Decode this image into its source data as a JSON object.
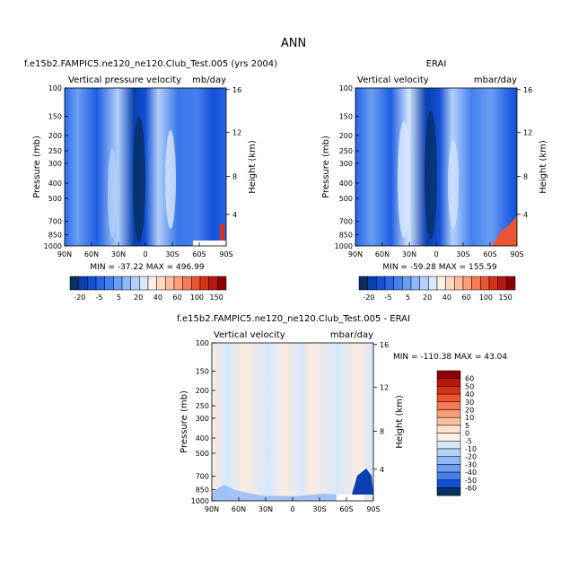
{
  "title": "ANN",
  "colors": {
    "diverging": [
      "#053061",
      "#0a3fb0",
      "#1450d6",
      "#2a66e6",
      "#4580ee",
      "#6a9ef2",
      "#8fb8f6",
      "#b3d0fa",
      "#d6e7fc",
      "#fff0e6",
      "#ffd7c2",
      "#ffbd9e",
      "#ff9d7a",
      "#f77a55",
      "#ea5534",
      "#d63219",
      "#b8170b",
      "#8b0000"
    ]
  },
  "chart_data": [
    {
      "id": "model",
      "type": "heatmap",
      "title": "f.e15b2.FAMPIC5.ne120_ne120.Club_Test.005 (yrs 2004)",
      "left_title": "Vertical pressure velocity",
      "units": "mb/day",
      "ylabel": "Pressure (mb)",
      "ylabel_right": "Height (km)",
      "xticks": [
        "90N",
        "60N",
        "30N",
        "0",
        "30S",
        "60S",
        "90S"
      ],
      "yticks": [
        "100",
        "150",
        "200",
        "250",
        "300",
        "400",
        "500",
        "700",
        "850",
        "1000"
      ],
      "yticks_right": [
        "16",
        "12",
        "8",
        "4"
      ],
      "stats": "MIN = -37.22   MAX = 496.99",
      "colorbar_labels": [
        "-20",
        "-5",
        "5",
        "20",
        "40",
        "60",
        "100",
        "150"
      ]
    },
    {
      "id": "obs",
      "type": "heatmap",
      "title": "ERAI",
      "left_title": "Vertical velocity",
      "units": "mbar/day",
      "ylabel": "Pressure (mb)",
      "ylabel_right": "Height (km)",
      "xticks": [
        "90N",
        "60N",
        "30N",
        "0",
        "30S",
        "60S",
        "90S"
      ],
      "yticks": [
        "100",
        "150",
        "200",
        "250",
        "300",
        "400",
        "500",
        "700",
        "850",
        "1000"
      ],
      "yticks_right": [
        "16",
        "12",
        "8",
        "4"
      ],
      "stats": "MIN = -59.28   MAX = 155.59",
      "colorbar_labels": [
        "-20",
        "-5",
        "5",
        "20",
        "40",
        "60",
        "100",
        "150"
      ]
    },
    {
      "id": "diff",
      "type": "heatmap",
      "title": "f.e15b2.FAMPIC5.ne120_ne120.Club_Test.005 - ERAI",
      "left_title": "Vertical velocity",
      "units": "mbar/day",
      "ylabel": "Pressure (mb)",
      "ylabel_right": "Height (km)",
      "xticks": [
        "90N",
        "60N",
        "30N",
        "0",
        "30S",
        "60S",
        "90S"
      ],
      "yticks": [
        "100",
        "150",
        "200",
        "250",
        "300",
        "400",
        "500",
        "700",
        "850",
        "1000"
      ],
      "yticks_right": [
        "16",
        "12",
        "8",
        "4"
      ],
      "stats": "MIN = -110.38   MAX =  43.04",
      "colorbar_labels": [
        "60",
        "50",
        "40",
        "30",
        "20",
        "10",
        "5",
        "0",
        "-5",
        "-10",
        "-20",
        "-30",
        "-40",
        "-50",
        "-60"
      ]
    }
  ]
}
